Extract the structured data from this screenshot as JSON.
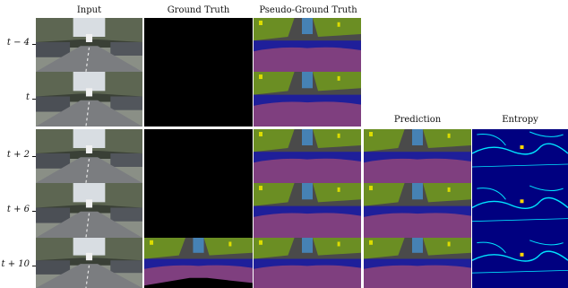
{
  "columns": {
    "input": "Input",
    "ground_truth": "Ground Truth",
    "pseudo_ground_truth": "Pseudo-Ground Truth",
    "prediction": "Prediction",
    "entropy": "Entropy"
  },
  "rows": [
    {
      "label": "t − 4"
    },
    {
      "label": "t"
    },
    {
      "label": "t + 2"
    },
    {
      "label": "t + 6"
    },
    {
      "label": "t + 10"
    }
  ],
  "colors": {
    "road": "#7f3f7f",
    "sidewalk": "#1f1f9a",
    "vegetation": "#6b8e23",
    "building": "#4a4a4a",
    "sky": "#4682b4",
    "car": "#00008e",
    "traffic_sign": "#dcdc00",
    "person": "#dc143c",
    "void": "#000000",
    "entropy_low": "#000080",
    "entropy_high": "#00e5ff"
  }
}
